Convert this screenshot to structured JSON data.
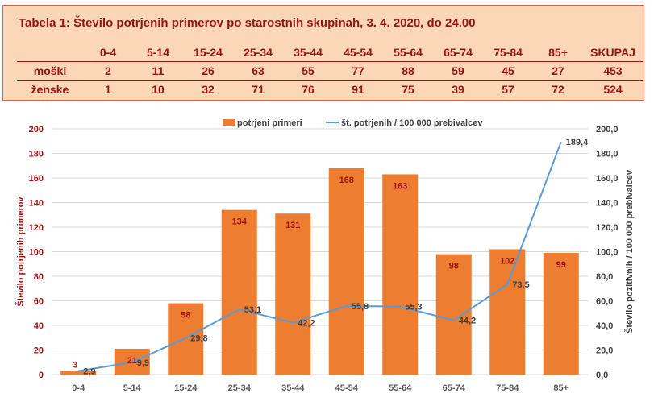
{
  "table": {
    "title": "Tabela 1: Število potrjenih primerov po starostnih skupinah, 3. 4. 2020, do 24.00",
    "columns": [
      "0-4",
      "5-14",
      "15-24",
      "25-34",
      "35-44",
      "45-54",
      "55-64",
      "65-74",
      "75-84",
      "85+",
      "SKUPAJ"
    ],
    "rows": [
      {
        "label": "moški",
        "values": [
          "2",
          "11",
          "26",
          "63",
          "55",
          "77",
          "88",
          "59",
          "45",
          "27",
          "453"
        ]
      },
      {
        "label": "ženske",
        "values": [
          "1",
          "10",
          "32",
          "71",
          "76",
          "91",
          "75",
          "39",
          "57",
          "72",
          "524"
        ]
      }
    ]
  },
  "chart_data": {
    "type": "bar+line",
    "categories": [
      "0-4",
      "5-14",
      "15-24",
      "25-34",
      "35-44",
      "45-54",
      "55-64",
      "65-74",
      "75-84",
      "85+"
    ],
    "series": [
      {
        "name": "potrjeni primeri",
        "type": "bar",
        "axis": "left",
        "values": [
          3,
          21,
          58,
          134,
          131,
          168,
          163,
          98,
          102,
          99
        ],
        "labels": [
          "3",
          "21",
          "58",
          "134",
          "131",
          "168",
          "163",
          "98",
          "102",
          "99"
        ]
      },
      {
        "name": "št. potrjenih / 100 000 prebivalcev",
        "type": "line",
        "axis": "right",
        "values": [
          2.9,
          9.9,
          29.8,
          53.1,
          42.2,
          55.8,
          55.3,
          44.2,
          73.5,
          189.4
        ],
        "labels": [
          "2,9",
          "9,9",
          "29,8",
          "53,1",
          "42,2",
          "55,8",
          "55,3",
          "44,2",
          "73,5",
          "189,4"
        ]
      }
    ],
    "ylabel_left": "Število potrjenih primerov",
    "ylabel_right": "Število pozitivnih / 100 000 prebivalcev",
    "ylim_left": [
      0,
      200
    ],
    "ylim_right": [
      0,
      200
    ],
    "yticks_left": [
      "0",
      "20",
      "40",
      "60",
      "80",
      "100",
      "120",
      "140",
      "160",
      "180",
      "200"
    ],
    "yticks_right": [
      "0,0",
      "20,0",
      "40,0",
      "60,0",
      "80,0",
      "100,0",
      "120,0",
      "140,0",
      "160,0",
      "180,0",
      "200,0"
    ],
    "grid": true,
    "legend_position": "top",
    "colors": {
      "bar": "#ed7d31",
      "line": "#5b9bd5",
      "bar_label": "#9a1313",
      "line_label": "#404040",
      "axis_text": "#595959",
      "grid": "#d9d9d9",
      "left_axis_title": "#9a1313",
      "right_axis_title": "#404040"
    }
  }
}
